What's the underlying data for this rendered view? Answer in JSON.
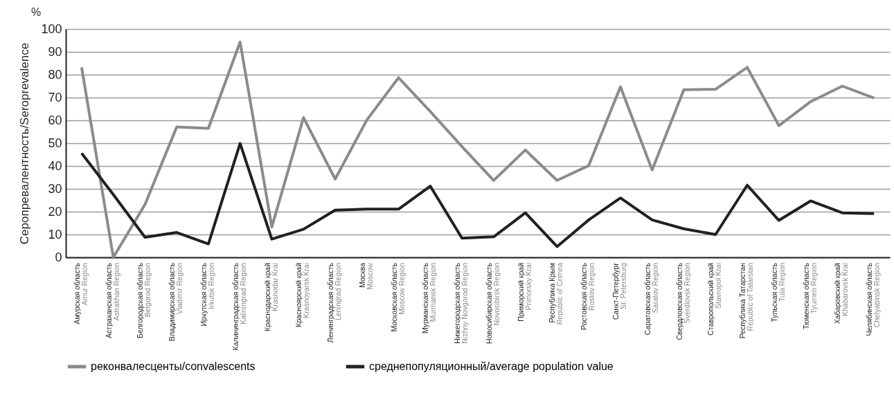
{
  "chart_data": {
    "type": "line",
    "ylabel": "Серопревалентность/Seroprevalence",
    "annotations": [
      "%"
    ],
    "categories": [
      "Амурская область\nAmur Region",
      "Астраханская область\nAstrakhan Region",
      "Белгородская область\nBelgorod Region",
      "Владимирская область\nVladimir Region",
      "Иркутская область\nIrkutsk Region",
      "Калининградская область\nKaliningrad Region",
      "Краснодарский край\nKrasnodar Krai",
      "Красноярский край\nKrasnoyarsk Krai",
      "Ленинградская область\nLeningrad Region",
      "Москва\nMoscow",
      "Московская область\nMoscow Region",
      "Мурманская область\nMurmansk Region",
      "Нижегородская область\nNizhny Novgorod Region",
      "Новосибирская область\nNovosibirsk Region",
      "Приморский край\nPrimorsky Krai",
      "Республика Крым\nRepublic of Crimea",
      "Ростовская область\nRostov Region",
      "Санкт-Петербург\nSt. Petersburg",
      "Саратовская область\nSaratov Region",
      "Свердловская область\nSverdlovsk Region",
      "Ставропольский край\nStavropol Krai",
      "Республика Татарстан\nRepublic of Tatarstan",
      "Тульская область\nTula Region",
      "Тюменская область\nTyumen Region",
      "Хабаровский край\nKhabarovsk Krai",
      "Челябинская область\nChelyabinsk Region"
    ],
    "series": [
      {
        "name": "реконвалесценты/convalescents",
        "color": "#8a8b8d",
        "values": [
          83.2,
          0,
          23.2,
          57.1,
          56.5,
          94.3,
          13.3,
          61.2,
          34.3,
          60.2,
          78.7,
          63.9,
          48.5,
          33.7,
          47.0,
          33.7,
          40.2,
          74.7,
          38.3,
          73.4,
          73.6,
          83.2,
          57.7,
          68.2,
          75.0,
          69.8
        ]
      },
      {
        "name": "среднепопуляционный/average population value",
        "color": "#231f20",
        "values": [
          45.6,
          27.5,
          8.8,
          10.9,
          5.9,
          49.9,
          8.0,
          12.3,
          20.7,
          21.1,
          21.1,
          31.2,
          8.4,
          9.0,
          19.5,
          4.7,
          16.4,
          26.0,
          16.4,
          12.5,
          10.0,
          31.6,
          16.2,
          24.7,
          19.5,
          19.2
        ]
      }
    ],
    "ylim": [
      0,
      100
    ],
    "yticks": [
      0,
      10,
      20,
      30,
      40,
      50,
      60,
      70,
      80,
      90,
      100
    ],
    "grid": "y",
    "legend": "bottom",
    "marker": "none",
    "line_style": "solid"
  }
}
